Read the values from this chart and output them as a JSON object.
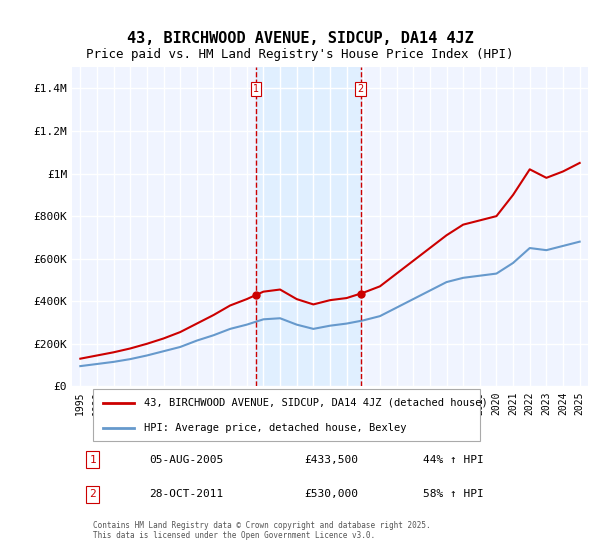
{
  "title": "43, BIRCHWOOD AVENUE, SIDCUP, DA14 4JZ",
  "subtitle": "Price paid vs. HM Land Registry's House Price Index (HPI)",
  "title_fontsize": 11,
  "subtitle_fontsize": 9,
  "xlabel": "",
  "ylabel": "",
  "ylim": [
    0,
    1500000
  ],
  "yticks": [
    0,
    200000,
    400000,
    600000,
    800000,
    1000000,
    1200000,
    1400000
  ],
  "ytick_labels": [
    "£0",
    "£200K",
    "£400K",
    "£600K",
    "£800K",
    "£1M",
    "£1.2M",
    "£1.4M"
  ],
  "background_color": "#ffffff",
  "plot_bg_color": "#f0f4ff",
  "grid_color": "#ffffff",
  "sale1_date_idx": 10.6,
  "sale1_price": 433500,
  "sale1_label": "1",
  "sale2_date_idx": 16.8,
  "sale2_price": 530000,
  "sale2_label": "2",
  "legend_label_red": "43, BIRCHWOOD AVENUE, SIDCUP, DA14 4JZ (detached house)",
  "legend_label_blue": "HPI: Average price, detached house, Bexley",
  "table_row1": [
    "1",
    "05-AUG-2005",
    "£433,500",
    "44% ↑ HPI"
  ],
  "table_row2": [
    "2",
    "28-OCT-2011",
    "£530,000",
    "58% ↑ HPI"
  ],
  "footer": "Contains HM Land Registry data © Crown copyright and database right 2025.\nThis data is licensed under the Open Government Licence v3.0.",
  "line_color_red": "#cc0000",
  "line_color_blue": "#6699cc",
  "sale_marker_color": "#cc0000",
  "vline_color": "#cc0000",
  "shade_color": "#ddeeff",
  "years": [
    1995,
    1996,
    1997,
    1998,
    1999,
    2000,
    2001,
    2002,
    2003,
    2004,
    2005,
    2006,
    2007,
    2008,
    2009,
    2010,
    2011,
    2012,
    2013,
    2014,
    2015,
    2016,
    2017,
    2018,
    2019,
    2020,
    2021,
    2022,
    2023,
    2024,
    2025
  ],
  "hpi_values": [
    95000,
    105000,
    115000,
    128000,
    145000,
    165000,
    185000,
    215000,
    240000,
    270000,
    290000,
    315000,
    320000,
    290000,
    270000,
    285000,
    295000,
    310000,
    330000,
    370000,
    410000,
    450000,
    490000,
    510000,
    520000,
    530000,
    580000,
    650000,
    640000,
    660000,
    680000
  ],
  "price_index_values": [
    130000,
    145000,
    160000,
    178000,
    200000,
    225000,
    255000,
    295000,
    335000,
    380000,
    410000,
    445000,
    455000,
    410000,
    385000,
    405000,
    415000,
    440000,
    470000,
    530000,
    590000,
    650000,
    710000,
    760000,
    780000,
    800000,
    900000,
    1020000,
    980000,
    1010000,
    1050000
  ]
}
